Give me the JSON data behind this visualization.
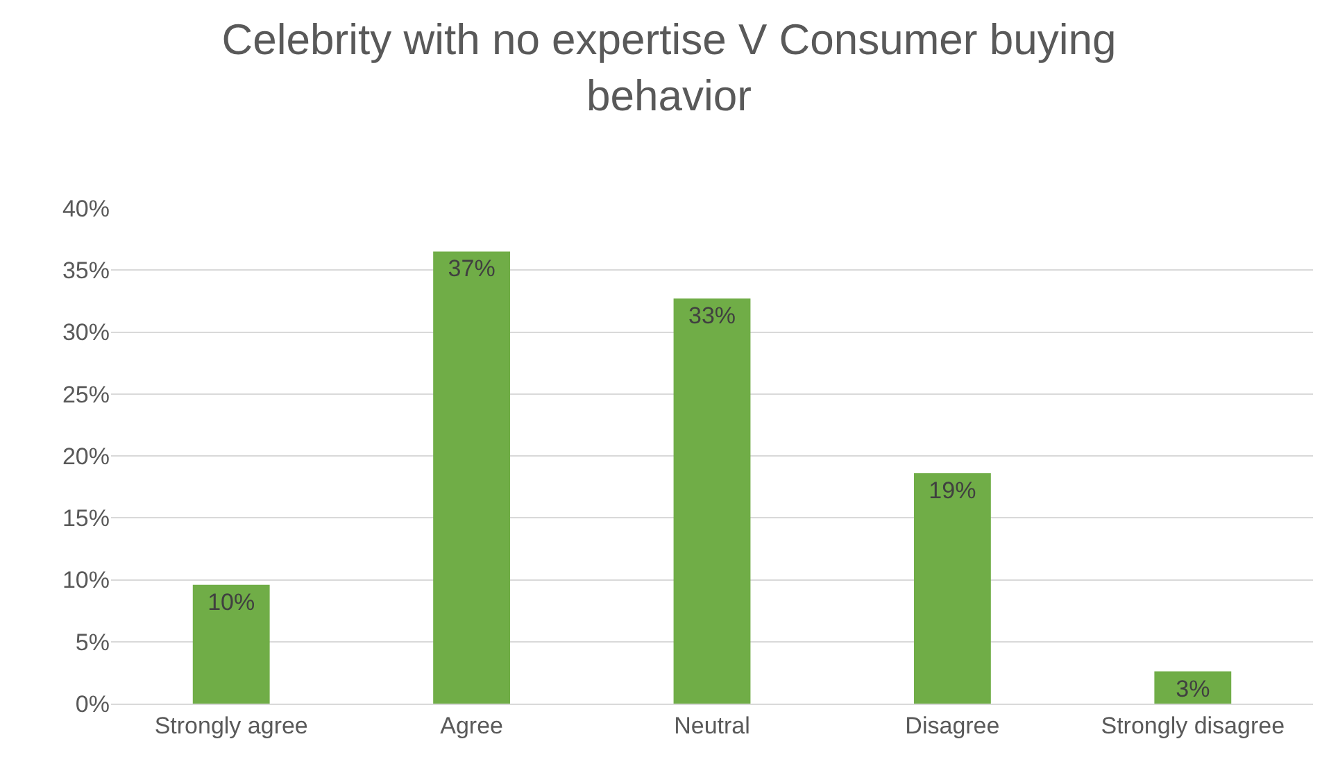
{
  "chart_data": {
    "type": "bar",
    "title": "Celebrity with no expertise V Consumer buying behavior",
    "categories": [
      "Strongly agree",
      "Agree",
      "Neutral",
      "Disagree",
      "Strongly disagree"
    ],
    "values": [
      9.6,
      36.5,
      32.7,
      18.6,
      2.6
    ],
    "value_labels": [
      "10%",
      "37%",
      "33%",
      "19%",
      "3%"
    ],
    "color": "#70ad47",
    "ylim": [
      0,
      40
    ],
    "yticks": [
      {
        "value": 0,
        "label": "0%"
      },
      {
        "value": 5,
        "label": "5%"
      },
      {
        "value": 10,
        "label": "10%"
      },
      {
        "value": 15,
        "label": "15%"
      },
      {
        "value": 20,
        "label": "20%"
      },
      {
        "value": 25,
        "label": "25%"
      },
      {
        "value": 30,
        "label": "30%"
      },
      {
        "value": 35,
        "label": "35%"
      },
      {
        "value": 40,
        "label": "40%"
      }
    ],
    "grid": "y",
    "legend": false
  }
}
